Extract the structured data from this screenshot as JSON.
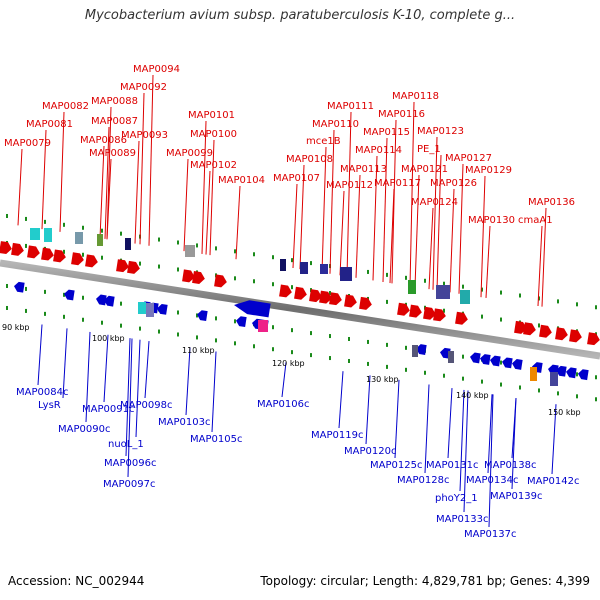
{
  "title": "Mycobacterium avium subsp. paratuberculosis K-10, complete g...",
  "footer": {
    "accession": "Accession: NC_002944",
    "summary": "Topology: circular; Length: 4,829,781 bp; Genes: 4,399"
  },
  "colors": {
    "forward": "#dd0000",
    "reverse": "#0000cc",
    "backbone": "#8c8c8c",
    "tick": "#1a8a1a"
  },
  "ticks": [
    "90 kbp",
    "100 kbp",
    "110 kbp",
    "120 kbp",
    "130 kbp",
    "140 kbp",
    "150 kbp"
  ],
  "forward_labels": [
    "MAP0079",
    "MAP0081",
    "MAP0082",
    "MAP0086",
    "MAP0087",
    "MAP0088",
    "MAP0089",
    "MAP0092",
    "MAP0093",
    "MAP0094",
    "MAP0099",
    "MAP0100",
    "MAP0101",
    "MAP0102",
    "MAP0104",
    "MAP0107",
    "MAP0108",
    "mce1B",
    "MAP0110",
    "MAP0111",
    "MAP0112",
    "MAP0113",
    "MAP0114",
    "MAP0115",
    "MAP0116",
    "MAP0117",
    "MAP0118",
    "PE_1",
    "MAP0121",
    "MAP0123",
    "MAP0124",
    "MAP0126",
    "MAP0127",
    "MAP0129",
    "MAP0130",
    "cmaA1",
    "MAP0136"
  ],
  "reverse_labels": [
    "MAP0084c",
    "LysR",
    "MAP0090c",
    "MAP0091c",
    "MAP0098c",
    "nuoL_1",
    "MAP0096c",
    "MAP0097c",
    "MAP0103c",
    "MAP0105c",
    "MAP0106c",
    "MAP0119c",
    "MAP0120c",
    "MAP0125c",
    "MAP0128c",
    "MAP0131c",
    "phoY2_1",
    "MAP0133c",
    "MAP0134c",
    "MAP0137c",
    "MAP0138c",
    "MAP0139c",
    "MAP0142c"
  ]
}
